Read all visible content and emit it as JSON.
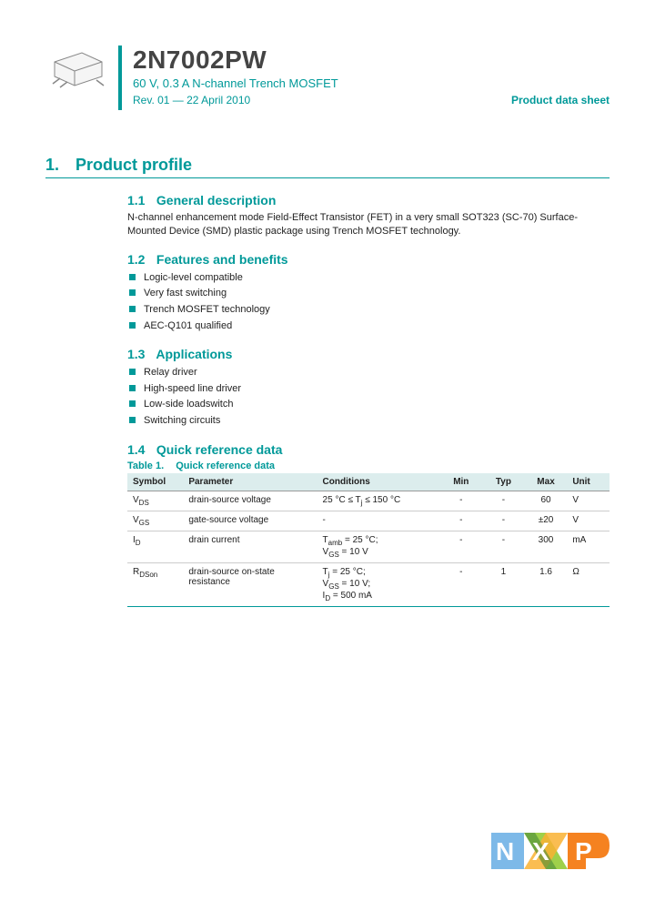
{
  "header": {
    "part_number": "2N7002PW",
    "subtitle": "60 V, 0.3 A N-channel Trench MOSFET",
    "revision": "Rev. 01 — 22 April 2010",
    "doc_type": "Product data sheet"
  },
  "section1": {
    "num": "1.",
    "title": "Product profile"
  },
  "sub11": {
    "num": "1.1",
    "title": "General description",
    "text": "N-channel enhancement mode Field-Effect Transistor (FET) in a very small SOT323 (SC-70) Surface-Mounted Device (SMD) plastic package using Trench MOSFET technology."
  },
  "sub12": {
    "num": "1.2",
    "title": "Features and benefits",
    "items": [
      "Logic-level compatible",
      "Very fast switching",
      "Trench MOSFET technology",
      "AEC-Q101 qualified"
    ]
  },
  "sub13": {
    "num": "1.3",
    "title": "Applications",
    "items": [
      "Relay driver",
      "High-speed line driver",
      "Low-side loadswitch",
      "Switching circuits"
    ]
  },
  "sub14": {
    "num": "1.4",
    "title": "Quick reference data",
    "table_label": "Table 1.",
    "table_title": "Quick reference data",
    "columns": [
      "Symbol",
      "Parameter",
      "Conditions",
      "Min",
      "Typ",
      "Max",
      "Unit"
    ],
    "rows": [
      {
        "symbol_html": "V<span class=\"sub\">DS</span>",
        "param": "drain-source voltage",
        "cond_html": "25 °C ≤ T<span class=\"sub\">j</span> ≤ 150 °C",
        "min": "-",
        "typ": "-",
        "max": "60",
        "unit": "V"
      },
      {
        "symbol_html": "V<span class=\"sub\">GS</span>",
        "param": "gate-source voltage",
        "cond_html": "-",
        "min": "-",
        "typ": "-",
        "max": "±20",
        "unit": "V"
      },
      {
        "symbol_html": "I<span class=\"sub\">D</span>",
        "param": "drain current",
        "cond_html": "T<span class=\"sub\">amb</span> = 25 °C;<br>V<span class=\"sub\">GS</span> = 10 V",
        "min": "-",
        "typ": "-",
        "max": "300",
        "unit": "mA"
      },
      {
        "symbol_html": "R<span class=\"sub\">DSon</span>",
        "param": "drain-source on-state resistance",
        "cond_html": "T<span class=\"sub\">j</span> = 25 °C;<br>V<span class=\"sub\">GS</span> = 10 V;<br>I<span class=\"sub\">D</span> = 500 mA",
        "min": "-",
        "typ": "1",
        "max": "1.6",
        "unit": "Ω"
      }
    ]
  },
  "colors": {
    "accent": "#009999",
    "logo_blue": "#7db9e8",
    "logo_green": "#9fd04a",
    "logo_orange": "#f58220"
  }
}
